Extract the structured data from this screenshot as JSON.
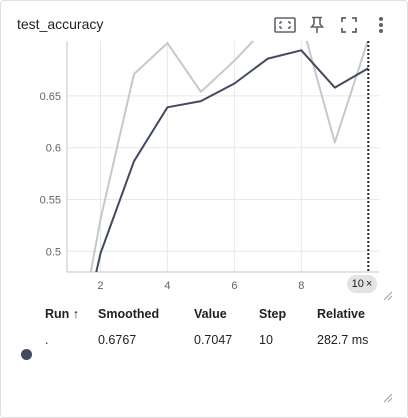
{
  "card": {
    "title": "test_accuracy"
  },
  "toolbar": {
    "buttons": [
      {
        "icon": "fit-domain-icon"
      },
      {
        "icon": "pin-icon"
      },
      {
        "icon": "fullscreen-icon"
      },
      {
        "icon": "more-vert-icon"
      }
    ]
  },
  "chart_data": {
    "type": "line",
    "title": "test_accuracy",
    "xlabel": "",
    "ylabel": "",
    "x_ticks": [
      "2",
      "4",
      "6",
      "8"
    ],
    "y_ticks": [
      "0.5",
      "0.55",
      "0.6",
      "0.65"
    ],
    "xlim": [
      1.0,
      10.2
    ],
    "ylim": [
      0.48,
      0.703
    ],
    "grid": true,
    "series": [
      {
        "role": "raw",
        "color": "#c6c8ce",
        "x": [
          1,
          2,
          3,
          4,
          5,
          6,
          7,
          8,
          9,
          10
        ],
        "y": [
          0.355,
          0.531,
          0.671,
          0.701,
          0.654,
          0.684,
          0.718,
          0.722,
          0.605,
          0.7047
        ]
      },
      {
        "role": "smoothed",
        "color": "#414a5f",
        "x": [
          1,
          2,
          3,
          4,
          5,
          6,
          7,
          8,
          9,
          10
        ],
        "y": [
          0.355,
          0.498,
          0.587,
          0.639,
          0.645,
          0.662,
          0.686,
          0.694,
          0.658,
          0.6767
        ]
      }
    ],
    "cursor_step": 10
  },
  "step_chip": {
    "label": "10",
    "close": "×"
  },
  "table": {
    "headers": {
      "run": "Run ↑",
      "smoothed": "Smoothed",
      "value": "Value",
      "step": "Step",
      "relative": "Relative"
    },
    "row": {
      "run": ".",
      "smoothed": "0.6767",
      "value": "0.7047",
      "step": "10",
      "relative": "282.7 ms",
      "color": "#414a5f"
    }
  }
}
